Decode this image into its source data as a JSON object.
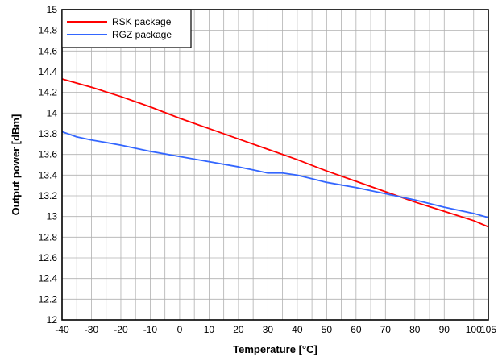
{
  "chart_data": {
    "type": "line",
    "title": "",
    "xlabel": "Temperature [°C]",
    "ylabel": "Output power [dBm]",
    "xlim": [
      -40,
      105
    ],
    "ylim": [
      12,
      15
    ],
    "x_ticks": [
      -40,
      -30,
      -20,
      -10,
      0,
      10,
      20,
      30,
      40,
      50,
      60,
      70,
      80,
      90,
      100,
      105
    ],
    "x_tick_labels": [
      "-40",
      "-30",
      "-20",
      "-10",
      "0",
      "10",
      "20",
      "30",
      "40",
      "50",
      "60",
      "70",
      "80",
      "90",
      "100",
      "105"
    ],
    "y_ticks": [
      12,
      12.2,
      12.4,
      12.6,
      12.8,
      13,
      13.2,
      13.4,
      13.6,
      13.8,
      14,
      14.2,
      14.4,
      14.6,
      14.8,
      15
    ],
    "y_tick_labels": [
      "12",
      "12.2",
      "12.4",
      "12.6",
      "12.8",
      "13",
      "13.2",
      "13.4",
      "13.6",
      "13.8",
      "14",
      "14.2",
      "14.4",
      "14.6",
      "14.8",
      "15"
    ],
    "x_minor_step": 5,
    "grid": true,
    "legend_position": "top-left",
    "series": [
      {
        "name": "RSK package",
        "color": "#ff0000",
        "x": [
          -40,
          -30,
          -20,
          -10,
          0,
          10,
          20,
          30,
          40,
          50,
          60,
          70,
          80,
          90,
          100,
          105
        ],
        "y": [
          14.33,
          14.25,
          14.16,
          14.06,
          13.95,
          13.85,
          13.75,
          13.65,
          13.55,
          13.44,
          13.34,
          13.24,
          13.14,
          13.05,
          12.96,
          12.9
        ]
      },
      {
        "name": "RGZ package",
        "color": "#3366ff",
        "x": [
          -40,
          -35,
          -30,
          -20,
          -10,
          0,
          10,
          20,
          25,
          30,
          35,
          40,
          50,
          60,
          70,
          80,
          90,
          100,
          105
        ],
        "y": [
          13.82,
          13.77,
          13.74,
          13.69,
          13.63,
          13.58,
          13.53,
          13.48,
          13.45,
          13.42,
          13.42,
          13.4,
          13.33,
          13.28,
          13.22,
          13.16,
          13.09,
          13.03,
          12.99
        ]
      }
    ]
  }
}
